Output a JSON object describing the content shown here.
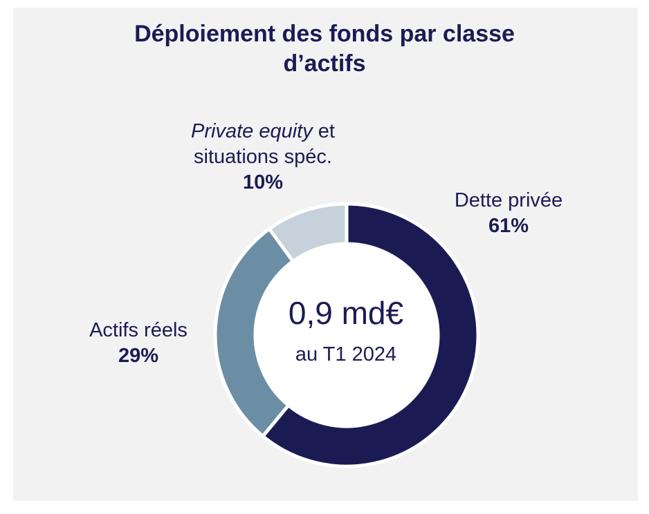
{
  "chart_data": {
    "type": "pie",
    "variant": "donut",
    "title_lines": [
      "Déploiement des fonds par classe",
      "d’actifs"
    ],
    "slices": [
      {
        "label": "Dette privée",
        "value": 61,
        "value_label": "61%",
        "color": "#1b1b54"
      },
      {
        "label": "Actifs réels",
        "value": 29,
        "value_label": "29%",
        "color": "#6b8ea5"
      },
      {
        "label_italic": "Private equity",
        "label_rest": " et",
        "label_line2": "situations spéc.",
        "value": 10,
        "value_label": "10%",
        "color": "#c6d1db"
      }
    ],
    "center": {
      "value": "0,9 md€",
      "subtitle": "au T1 2024"
    }
  }
}
